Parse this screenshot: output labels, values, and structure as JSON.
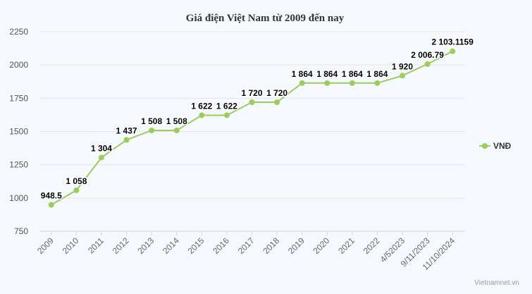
{
  "chart_data": {
    "type": "line",
    "title": "Giá điện Việt Nam từ 2009 đến nay",
    "xlabel": "",
    "ylabel": "",
    "ylim": [
      750,
      2250
    ],
    "yticks": [
      750,
      1000,
      1250,
      1500,
      1750,
      2000,
      2250
    ],
    "grid": true,
    "legend_position": "right",
    "categories": [
      "2009",
      "2010",
      "2011",
      "2012",
      "2013",
      "2014",
      "2015",
      "2016",
      "2017",
      "2018",
      "2019",
      "2020",
      "2021",
      "2022",
      "4/52023",
      "9/11/2023",
      "11/10/2024"
    ],
    "series": [
      {
        "name": "VNĐ",
        "color": "#9ccc5e",
        "values": [
          948.5,
          1058,
          1304,
          1437,
          1508,
          1508,
          1622,
          1622,
          1720,
          1720,
          1864,
          1864,
          1864,
          1864,
          1920,
          2006.79,
          2103.1159
        ],
        "labels": [
          "948.5",
          "1 058",
          "1 304",
          "1 437",
          "1 508",
          "1 508",
          "1 622",
          "1 622",
          "1 720",
          "1 720",
          "1 864",
          "1 864",
          "1 864",
          "1 864",
          "1 920",
          "2 006.79",
          "2 103.1159"
        ]
      }
    ]
  },
  "credit": "Vietnamnet.vn"
}
